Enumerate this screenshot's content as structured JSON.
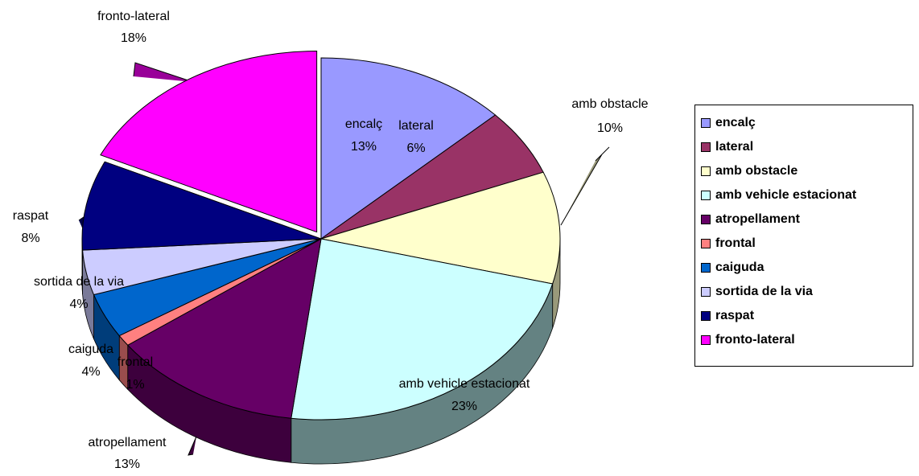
{
  "chart_data": {
    "type": "pie",
    "title": "",
    "legend_position": "right",
    "labels_shown": "name and percent",
    "slices": [
      {
        "name": "encalç",
        "value": 13,
        "label": "13%",
        "color": "#9999ff",
        "side_color": "#5c5c99"
      },
      {
        "name": "lateral",
        "value": 6,
        "label": "6%",
        "color": "#993366",
        "side_color": "#5c1f3d"
      },
      {
        "name": "amb obstacle",
        "value": 10,
        "label": "10%",
        "color": "#ffffcc",
        "side_color": "#99997a"
      },
      {
        "name": "amb vehicle estacionat",
        "value": 23,
        "label": "23%",
        "color": "#ccffff",
        "side_color": "#648282"
      },
      {
        "name": "atropellament",
        "value": 13,
        "label": "13%",
        "color": "#660066",
        "side_color": "#3d003d"
      },
      {
        "name": "frontal",
        "value": 1,
        "label": "1%",
        "color": "#ff8080",
        "side_color": "#994d4d"
      },
      {
        "name": "caiguda",
        "value": 4,
        "label": "4%",
        "color": "#0066cc",
        "side_color": "#003d7a"
      },
      {
        "name": "sortida de la via",
        "value": 4,
        "label": "4%",
        "color": "#ccccff",
        "side_color": "#7a7a99"
      },
      {
        "name": "raspat",
        "value": 8,
        "label": "8%",
        "color": "#000080",
        "side_color": "#00004d"
      },
      {
        "name": "fronto-lateral",
        "value": 18,
        "label": "18%",
        "color": "#ff00ff",
        "side_color": "#990099"
      }
    ]
  }
}
